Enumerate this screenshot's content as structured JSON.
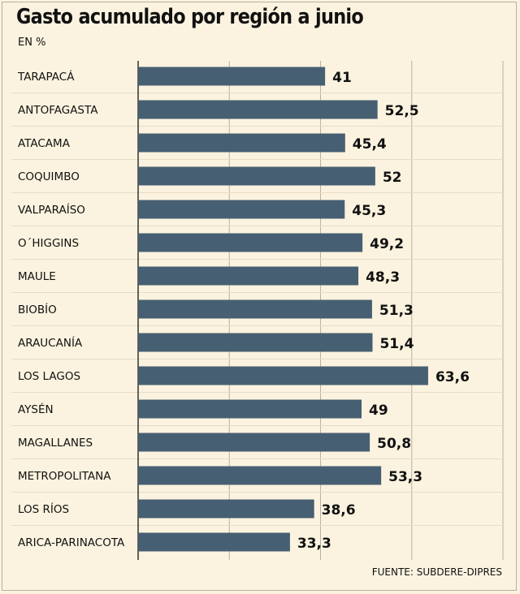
{
  "chart_data": {
    "type": "bar",
    "orientation": "horizontal",
    "title": "Gasto acumulado por región a junio",
    "subtitle": "EN %",
    "source": "FUENTE: SUBDERE-DIPRES",
    "categories": [
      "TARAPACÁ",
      "ANTOFAGASTA",
      "ATACAMA",
      "COQUIMBO",
      "VALPARAÍSO",
      "O´HIGGINS",
      "MAULE",
      "BIOBÍO",
      "ARAUCANÍA",
      "LOS LAGOS",
      "AYSÉN",
      "MAGALLANES",
      "METROPOLITANA",
      "LOS RÍOS",
      "ARICA-PARINACOTA"
    ],
    "values": [
      41,
      52.5,
      45.4,
      52,
      45.3,
      49.2,
      48.3,
      51.3,
      51.4,
      63.6,
      49,
      50.8,
      53.3,
      38.6,
      33.3
    ],
    "value_labels": [
      "41",
      "52,5",
      "45,4",
      "52",
      "45,3",
      "49,2",
      "48,3",
      "51,3",
      "51,4",
      "63,6",
      "49",
      "50,8",
      "53,3",
      "38,6",
      "33,3"
    ],
    "xlim": [
      0,
      80
    ],
    "grid": true,
    "bar_color": "#475f72"
  }
}
